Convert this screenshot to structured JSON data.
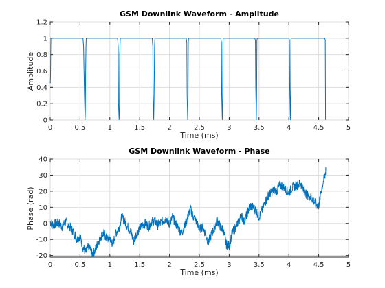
{
  "figure": {
    "colors": {
      "series": "#0072bd",
      "axes": "#262626",
      "grid": "#dedede"
    }
  },
  "chart_data": [
    {
      "type": "line",
      "title": "GSM Downlink Waveform - Amplitude",
      "xlabel": "Time (ms)",
      "ylabel": "Amplitude",
      "xlim": [
        0,
        5
      ],
      "ylim": [
        0,
        1.2
      ],
      "xticks": [
        0,
        0.5,
        1,
        1.5,
        2,
        2.5,
        3,
        3.5,
        4,
        4.5,
        5
      ],
      "yticks": [
        0,
        0.2,
        0.4,
        0.6,
        0.8,
        1,
        1.2
      ],
      "xtick_labels": [
        "0",
        "0.5",
        "1",
        "1.5",
        "2",
        "2.5",
        "3",
        "3.5",
        "4",
        "4.5",
        "5"
      ],
      "ytick_labels": [
        "0",
        "0.2",
        "0.4",
        "0.6",
        "0.8",
        "1",
        "1.2"
      ],
      "grid": true,
      "series": [
        {
          "color": "#0072bd",
          "x": [
            0,
            0.002,
            0.006,
            0.01,
            0.012,
            0.02,
            0.55,
            0.56,
            0.575,
            0.585,
            0.59,
            0.595,
            0.6,
            0.605,
            0.61,
            1.13,
            1.14,
            1.145,
            1.155,
            1.16,
            1.165,
            1.175,
            1.18,
            1.71,
            1.72,
            1.725,
            1.735,
            1.74,
            1.75,
            1.755,
            2.28,
            2.29,
            2.295,
            2.305,
            2.31,
            2.315,
            2.32,
            2.86,
            2.87,
            2.875,
            2.885,
            2.89,
            2.895,
            2.9,
            3.43,
            3.44,
            3.445,
            3.455,
            3.46,
            3.465,
            3.47,
            4.0,
            4.01,
            4.015,
            4.025,
            4.03,
            4.035,
            4.04,
            4.6,
            4.61,
            4.615
          ],
          "y": [
            0.47,
            0.45,
            0.55,
            0.9,
            1.0,
            1.0,
            1.0,
            0.9,
            0.3,
            0.0,
            0.1,
            0.6,
            0.9,
            1.0,
            1.0,
            1.0,
            0.9,
            0.2,
            0.0,
            0.1,
            0.8,
            1.0,
            1.0,
            1.0,
            0.9,
            0.3,
            0.0,
            0.2,
            0.9,
            1.0,
            1.0,
            0.95,
            0.3,
            0.0,
            0.2,
            0.95,
            1.0,
            1.0,
            0.95,
            0.3,
            0.0,
            0.2,
            0.95,
            1.0,
            1.0,
            0.97,
            0.4,
            0.0,
            0.3,
            0.97,
            1.0,
            1.0,
            0.98,
            0.4,
            0.0,
            0.3,
            0.98,
            1.0,
            1.0,
            0.98,
            0.0
          ]
        }
      ]
    },
    {
      "type": "line",
      "title": "GSM Downlink Waveform - Phase",
      "xlabel": "Time (ms)",
      "ylabel": "Phase (rad)",
      "xlim": [
        0,
        5
      ],
      "ylim": [
        -21,
        40
      ],
      "xticks": [
        0,
        0.5,
        1,
        1.5,
        2,
        2.5,
        3,
        3.5,
        4,
        4.5,
        5
      ],
      "yticks": [
        -20,
        -10,
        0,
        10,
        20,
        30,
        40
      ],
      "xtick_labels": [
        "0",
        "0.5",
        "1",
        "1.5",
        "2",
        "2.5",
        "3",
        "3.5",
        "4",
        "4.5",
        "5"
      ],
      "ytick_labels": [
        "-20",
        "-10",
        "0",
        "10",
        "20",
        "30",
        "40"
      ],
      "grid": true,
      "series": [
        {
          "color": "#0072bd",
          "x": [
            0,
            0.05,
            0.1,
            0.15,
            0.2,
            0.25,
            0.3,
            0.35,
            0.4,
            0.45,
            0.5,
            0.55,
            0.6,
            0.65,
            0.7,
            0.75,
            0.8,
            0.85,
            0.9,
            0.95,
            1.0,
            1.05,
            1.1,
            1.15,
            1.2,
            1.25,
            1.3,
            1.35,
            1.4,
            1.45,
            1.5,
            1.55,
            1.6,
            1.65,
            1.7,
            1.75,
            1.8,
            1.85,
            1.9,
            1.95,
            2.0,
            2.05,
            2.1,
            2.15,
            2.2,
            2.25,
            2.3,
            2.35,
            2.4,
            2.45,
            2.5,
            2.55,
            2.6,
            2.65,
            2.7,
            2.75,
            2.8,
            2.85,
            2.9,
            2.95,
            3.0,
            3.05,
            3.1,
            3.15,
            3.2,
            3.25,
            3.3,
            3.35,
            3.4,
            3.45,
            3.5,
            3.55,
            3.6,
            3.65,
            3.7,
            3.75,
            3.8,
            3.85,
            3.9,
            3.95,
            4.0,
            4.05,
            4.1,
            4.15,
            4.2,
            4.25,
            4.3,
            4.35,
            4.4,
            4.45,
            4.5,
            4.55,
            4.6,
            4.62
          ],
          "y": [
            1,
            -1,
            0,
            0,
            -2,
            1,
            -1,
            -3,
            -6,
            -10,
            -8,
            -15,
            -18,
            -14,
            -19,
            -17,
            -12,
            -8,
            -6,
            -10,
            -9,
            -13,
            -6,
            -3,
            4,
            1,
            -2,
            -5,
            -11,
            -6,
            -3,
            -1,
            0,
            -2,
            1,
            2,
            -1,
            0,
            2,
            3,
            -1,
            4,
            0,
            -3,
            -6,
            -2,
            3,
            9,
            4,
            1,
            -4,
            -2,
            -6,
            -12,
            -7,
            -3,
            2,
            -2,
            -4,
            -13,
            -14,
            -6,
            -3,
            0,
            5,
            1,
            6,
            11,
            10,
            8,
            4,
            8,
            13,
            17,
            19,
            21,
            20,
            24,
            23,
            21,
            19,
            22,
            23,
            24,
            25,
            20,
            18,
            17,
            15,
            12,
            11,
            22,
            29,
            33
          ],
          "noise": 1.5
        }
      ]
    }
  ]
}
